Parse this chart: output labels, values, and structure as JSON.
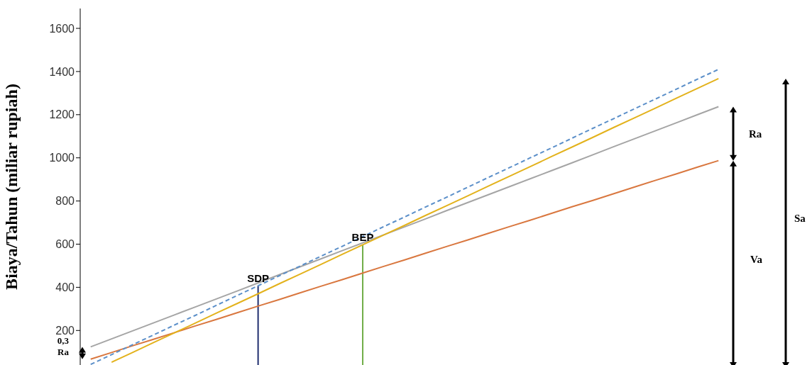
{
  "chart_data": {
    "type": "line",
    "ylabel": "Biaya/Tahun  (miliar rupiah)",
    "categories": [
      null,
      null,
      null,
      null,
      null,
      null,
      null,
      null,
      null,
      null,
      null,
      null,
      null,
      null,
      null,
      null,
      null,
      null,
      null,
      null,
      null,
      null,
      null,
      null,
      null,
      null,
      null,
      null,
      null,
      null,
      null
    ],
    "series": [
      {
        "color": "#a5a5a5",
        "line_style": "solid",
        "values": [
          124,
          161,
          198,
          235,
          272,
          309,
          346,
          383,
          420,
          458,
          495,
          532,
          569,
          606,
          643,
          680,
          717,
          755,
          792,
          829,
          866,
          903,
          940,
          977,
          1014,
          1052,
          1089,
          1126,
          1163,
          1200,
          1237
        ]
      },
      {
        "color": "#d9773f",
        "line_style": "solid",
        "values": [
          67,
          98,
          129,
          159,
          190,
          221,
          251,
          282,
          313,
          343,
          374,
          405,
          435,
          466,
          497,
          527,
          558,
          589,
          619,
          650,
          681,
          711,
          742,
          773,
          803,
          834,
          865,
          896,
          926,
          957,
          987
        ]
      },
      {
        "color": "#e3b21c",
        "line_style": "solid",
        "values": [
          null,
          53,
          98,
          144,
          189,
          234,
          280,
          325,
          370,
          416,
          461,
          506,
          552,
          597,
          642,
          687,
          733,
          778,
          823,
          869,
          914,
          959,
          1005,
          1050,
          1095,
          1141,
          1186,
          1231,
          1277,
          1322,
          1367
        ]
      },
      {
        "color": "#5b8fc9",
        "line_style": "dashed",
        "values": [
          43,
          88,
          134,
          179,
          225,
          270,
          316,
          362,
          407,
          453,
          498,
          544,
          589,
          635,
          681,
          726,
          772,
          817,
          863,
          909,
          954,
          1000,
          1045,
          1091,
          1137,
          1182,
          1228,
          1273,
          1319,
          1365,
          1410
        ]
      }
    ],
    "annotations": [
      "Ra",
      "Va",
      "Sa",
      "0,3",
      "Ra",
      {
        "text": "SDP",
        "y": 407
      },
      {
        "text": "BEP",
        "y": 597
      }
    ],
    "ylim": [
      40,
      1692
    ],
    "yticks": [
      200,
      400,
      600,
      800,
      1000,
      1200,
      1400,
      1600
    ],
    "tick_labels": "y",
    "marker": "none"
  }
}
